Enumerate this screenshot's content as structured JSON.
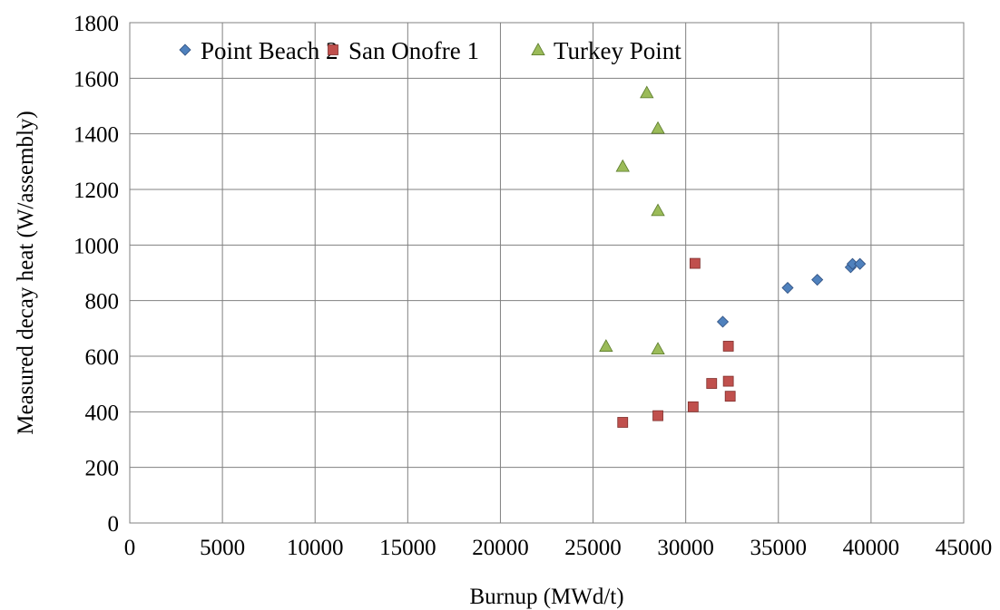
{
  "chart_data": {
    "type": "scatter",
    "title": "",
    "xlabel": "Burnup (MWd/t)",
    "ylabel": "Measured decay heat (W/assembly)",
    "xlim": [
      0,
      45000
    ],
    "ylim": [
      0,
      1800
    ],
    "xticks": [
      0,
      5000,
      10000,
      15000,
      20000,
      25000,
      30000,
      35000,
      40000,
      45000
    ],
    "yticks": [
      0,
      200,
      400,
      600,
      800,
      1000,
      1200,
      1400,
      1600,
      1800
    ],
    "grid": true,
    "legend_position": "top",
    "series": [
      {
        "name": "Point Beach 2",
        "marker": "diamond",
        "color": "#4f81bd",
        "points": [
          {
            "x": 32000,
            "y": 724
          },
          {
            "x": 35500,
            "y": 846
          },
          {
            "x": 37100,
            "y": 875
          },
          {
            "x": 38900,
            "y": 920
          },
          {
            "x": 39000,
            "y": 932
          },
          {
            "x": 39400,
            "y": 932
          }
        ]
      },
      {
        "name": "San Onofre 1",
        "marker": "square",
        "color": "#c0504d",
        "points": [
          {
            "x": 26600,
            "y": 362
          },
          {
            "x": 28500,
            "y": 386
          },
          {
            "x": 30400,
            "y": 418
          },
          {
            "x": 30500,
            "y": 934
          },
          {
            "x": 31400,
            "y": 502
          },
          {
            "x": 32300,
            "y": 636
          },
          {
            "x": 32300,
            "y": 510
          },
          {
            "x": 32400,
            "y": 456
          }
        ]
      },
      {
        "name": "Turkey Point",
        "marker": "triangle",
        "color": "#9bbb59",
        "points": [
          {
            "x": 25700,
            "y": 636
          },
          {
            "x": 26600,
            "y": 1283
          },
          {
            "x": 27900,
            "y": 1548
          },
          {
            "x": 28500,
            "y": 1420
          },
          {
            "x": 28500,
            "y": 1124
          },
          {
            "x": 28500,
            "y": 626
          }
        ]
      }
    ]
  }
}
